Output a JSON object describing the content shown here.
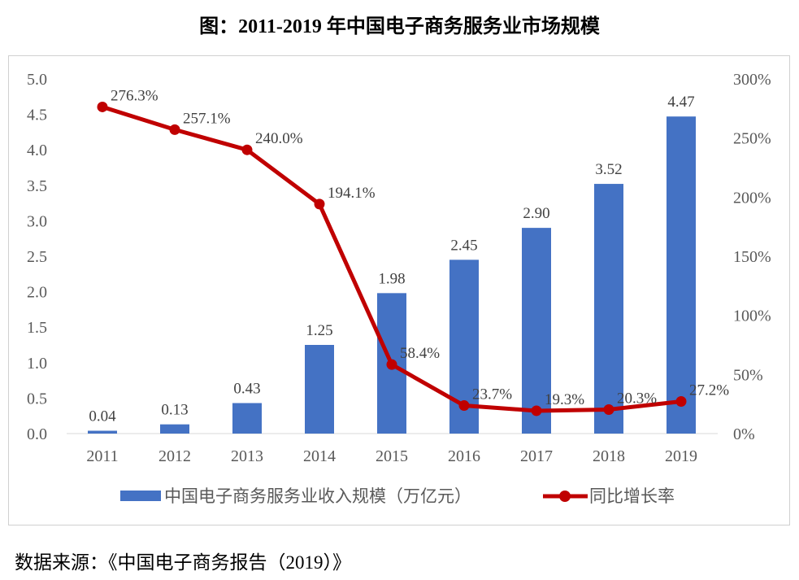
{
  "title": "图：2011-2019 年中国电子商务服务业市场规模",
  "source": "数据来源：《中国电子商务报告（2019）》",
  "chart_data": {
    "type": "bar+line",
    "categories": [
      "2011",
      "2012",
      "2013",
      "2014",
      "2015",
      "2016",
      "2017",
      "2018",
      "2019"
    ],
    "series": [
      {
        "name": "中国电子商务服务业收入规模（万亿元）",
        "type": "bar",
        "axis": "left",
        "color": "#4472C4",
        "values": [
          0.04,
          0.13,
          0.43,
          1.25,
          1.98,
          2.45,
          2.9,
          3.52,
          4.47
        ],
        "labels": [
          "0.04",
          "0.13",
          "0.43",
          "1.25",
          "1.98",
          "2.45",
          "2.90",
          "3.52",
          "4.47"
        ]
      },
      {
        "name": "同比增长率",
        "type": "line",
        "axis": "right",
        "color": "#C00000",
        "values": [
          276.3,
          257.1,
          240.0,
          194.1,
          58.4,
          23.7,
          19.3,
          20.3,
          27.2
        ],
        "labels": [
          "276.3%",
          "257.1%",
          "240.0%",
          "194.1%",
          "58.4%",
          "23.7%",
          "19.3%",
          "20.3%",
          "27.2%"
        ]
      }
    ],
    "y_left": {
      "range": [
        0,
        5.0
      ],
      "ticks": [
        "0.0",
        "0.5",
        "1.0",
        "1.5",
        "2.0",
        "2.5",
        "3.0",
        "3.5",
        "4.0",
        "4.5",
        "5.0"
      ]
    },
    "y_right": {
      "range": [
        0,
        300
      ],
      "ticks": [
        "0%",
        "50%",
        "100%",
        "150%",
        "200%",
        "250%",
        "300%"
      ]
    },
    "grid": false,
    "legend": "bottom"
  }
}
